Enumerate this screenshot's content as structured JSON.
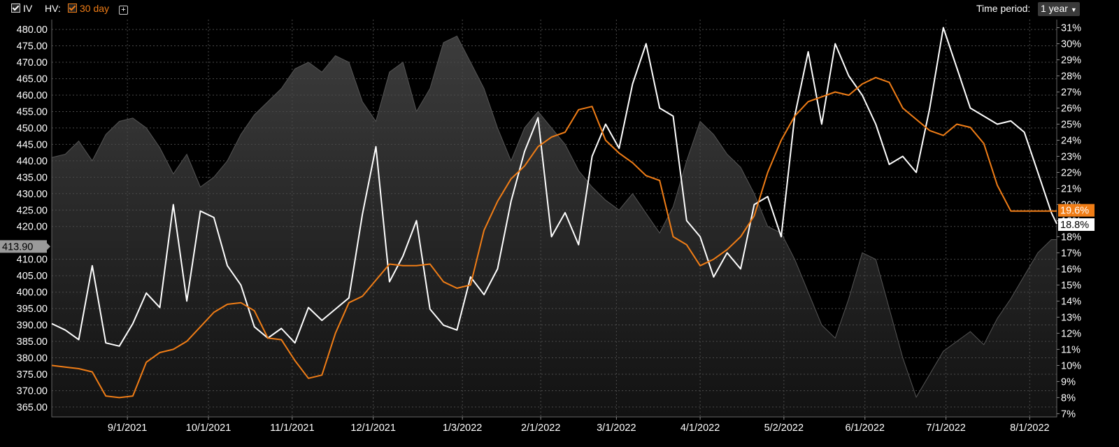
{
  "toolbar": {
    "iv_label": "IV",
    "hv_label": "HV:",
    "hv_period": "30 day",
    "add_icon": "plus-box-icon",
    "time_period_label": "Time period:",
    "time_period_value": "1 year"
  },
  "colors": {
    "background": "#000000",
    "iv_line": "#ffffff",
    "hv_line": "#f07d16",
    "price_area": "#2a2a2a",
    "grid": "#555555"
  },
  "chart_data": {
    "type": "line",
    "x_tick_labels": [
      "9/1/2021",
      "10/1/2021",
      "11/1/2021",
      "12/1/2021",
      "1/3/2022",
      "2/1/2022",
      "3/1/2022",
      "4/1/2022",
      "5/2/2022",
      "6/1/2022",
      "7/1/2022",
      "8/1/2022"
    ],
    "x_range": [
      "2021-08-04",
      "2022-08-11"
    ],
    "left_axis": {
      "range": [
        362,
        483
      ],
      "tick_labels": [
        "365.00",
        "370.00",
        "375.00",
        "380.00",
        "385.00",
        "390.00",
        "395.00",
        "400.00",
        "405.00",
        "410.00",
        "420.00",
        "425.00",
        "430.00",
        "435.00",
        "440.00",
        "445.00",
        "450.00",
        "455.00",
        "460.00",
        "465.00",
        "470.00",
        "475.00",
        "480.00"
      ],
      "current_value_label": "413.90"
    },
    "right_axis": {
      "range": [
        6.8,
        31.5
      ],
      "tick_labels": [
        "7%",
        "8%",
        "9%",
        "10%",
        "11%",
        "12%",
        "13%",
        "14%",
        "15%",
        "16%",
        "17%",
        "18%",
        "19%",
        "20%",
        "21%",
        "22%",
        "23%",
        "24%",
        "25%",
        "26%",
        "27%",
        "28%",
        "29%",
        "30%",
        "31%"
      ]
    },
    "grid": true,
    "series": [
      {
        "style": "area",
        "axis": "left",
        "x": [
          "2021-08-04",
          "2021-08-09",
          "2021-08-14",
          "2021-08-19",
          "2021-08-24",
          "2021-08-29",
          "2021-09-03",
          "2021-09-08",
          "2021-09-13",
          "2021-09-18",
          "2021-09-23",
          "2021-09-28",
          "2021-10-03",
          "2021-10-08",
          "2021-10-13",
          "2021-10-18",
          "2021-10-23",
          "2021-10-28",
          "2021-11-02",
          "2021-11-07",
          "2021-11-12",
          "2021-11-17",
          "2021-11-22",
          "2021-11-27",
          "2021-12-02",
          "2021-12-07",
          "2021-12-12",
          "2021-12-17",
          "2021-12-22",
          "2021-12-27",
          "2022-01-01",
          "2022-01-06",
          "2022-01-11",
          "2022-01-16",
          "2022-01-21",
          "2022-01-26",
          "2022-01-31",
          "2022-02-05",
          "2022-02-10",
          "2022-02-15",
          "2022-02-20",
          "2022-02-25",
          "2022-03-02",
          "2022-03-07",
          "2022-03-12",
          "2022-03-17",
          "2022-03-22",
          "2022-03-27",
          "2022-04-01",
          "2022-04-06",
          "2022-04-11",
          "2022-04-16",
          "2022-04-21",
          "2022-04-26",
          "2022-05-01",
          "2022-05-06",
          "2022-05-11",
          "2022-05-16",
          "2022-05-21",
          "2022-05-26",
          "2022-05-31",
          "2022-06-05",
          "2022-06-10",
          "2022-06-15",
          "2022-06-20",
          "2022-06-25",
          "2022-06-30",
          "2022-07-05",
          "2022-07-10",
          "2022-07-15",
          "2022-07-20",
          "2022-07-25",
          "2022-07-30",
          "2022-08-04",
          "2022-08-09",
          "2022-08-11"
        ],
        "y": [
          441,
          442,
          446,
          440,
          448,
          452,
          453,
          450,
          444,
          436,
          442,
          432,
          435,
          440,
          448,
          454,
          458,
          462,
          468,
          470,
          467,
          472,
          470,
          458,
          452,
          467,
          470,
          455,
          462,
          476,
          478,
          470,
          462,
          450,
          440,
          450,
          455,
          450,
          445,
          437,
          432,
          428,
          425,
          430,
          424,
          418,
          426,
          440,
          452,
          448,
          442,
          438,
          430,
          420,
          418,
          410,
          400,
          390,
          386,
          398,
          412,
          410,
          395,
          380,
          368,
          375,
          382,
          385,
          388,
          384,
          392,
          398,
          405,
          412,
          416,
          416
        ]
      },
      {
        "name": "IV",
        "axis": "right",
        "x": [
          "2021-08-04",
          "2021-08-09",
          "2021-08-14",
          "2021-08-19",
          "2021-08-24",
          "2021-08-29",
          "2021-09-03",
          "2021-09-08",
          "2021-09-13",
          "2021-09-18",
          "2021-09-23",
          "2021-09-28",
          "2021-10-03",
          "2021-10-08",
          "2021-10-13",
          "2021-10-18",
          "2021-10-23",
          "2021-10-28",
          "2021-11-02",
          "2021-11-07",
          "2021-11-12",
          "2021-11-17",
          "2021-11-22",
          "2021-11-27",
          "2021-12-02",
          "2021-12-07",
          "2021-12-12",
          "2021-12-17",
          "2021-12-22",
          "2021-12-27",
          "2022-01-01",
          "2022-01-06",
          "2022-01-11",
          "2022-01-16",
          "2022-01-21",
          "2022-01-26",
          "2022-01-31",
          "2022-02-05",
          "2022-02-10",
          "2022-02-15",
          "2022-02-20",
          "2022-02-25",
          "2022-03-02",
          "2022-03-07",
          "2022-03-12",
          "2022-03-17",
          "2022-03-22",
          "2022-03-27",
          "2022-04-01",
          "2022-04-06",
          "2022-04-11",
          "2022-04-16",
          "2022-04-21",
          "2022-04-26",
          "2022-05-01",
          "2022-05-06",
          "2022-05-11",
          "2022-05-16",
          "2022-05-21",
          "2022-05-26",
          "2022-05-31",
          "2022-06-05",
          "2022-06-10",
          "2022-06-15",
          "2022-06-20",
          "2022-06-25",
          "2022-06-30",
          "2022-07-05",
          "2022-07-10",
          "2022-07-15",
          "2022-07-20",
          "2022-07-25",
          "2022-07-30",
          "2022-08-04",
          "2022-08-09",
          "2022-08-11"
        ],
        "y": [
          12.6,
          12.2,
          11.6,
          16.2,
          11.4,
          11.2,
          12.6,
          14.5,
          13.6,
          20,
          14,
          19.6,
          19.2,
          16.2,
          15,
          12.4,
          11.7,
          12.3,
          11.4,
          13.6,
          12.8,
          13.5,
          14.2,
          19.4,
          23.6,
          15.2,
          16.8,
          19,
          13.5,
          12.5,
          12.2,
          15.5,
          14.4,
          16,
          20.2,
          23.3,
          25.4,
          18,
          19.5,
          17.5,
          23,
          25,
          23.5,
          27.5,
          30,
          26,
          25.5,
          19,
          18,
          15.5,
          17,
          16,
          20,
          20.5,
          18,
          25.5,
          29.5,
          25,
          30,
          28,
          26.8,
          25,
          22.5,
          23,
          22,
          26,
          31,
          28.5,
          26,
          25.5,
          25,
          25.2,
          24.5,
          22,
          19.5,
          18.8
        ]
      },
      {
        "name": "HV",
        "axis": "right",
        "x": [
          "2021-08-04",
          "2021-08-09",
          "2021-08-14",
          "2021-08-19",
          "2021-08-24",
          "2021-08-29",
          "2021-09-03",
          "2021-09-08",
          "2021-09-13",
          "2021-09-18",
          "2021-09-23",
          "2021-09-28",
          "2021-10-03",
          "2021-10-08",
          "2021-10-13",
          "2021-10-18",
          "2021-10-23",
          "2021-10-28",
          "2021-11-02",
          "2021-11-07",
          "2021-11-12",
          "2021-11-17",
          "2021-11-22",
          "2021-11-27",
          "2021-12-02",
          "2021-12-07",
          "2021-12-12",
          "2021-12-17",
          "2021-12-22",
          "2021-12-27",
          "2022-01-01",
          "2022-01-06",
          "2022-01-11",
          "2022-01-16",
          "2022-01-21",
          "2022-01-26",
          "2022-01-31",
          "2022-02-05",
          "2022-02-10",
          "2022-02-15",
          "2022-02-20",
          "2022-02-25",
          "2022-03-02",
          "2022-03-07",
          "2022-03-12",
          "2022-03-17",
          "2022-03-22",
          "2022-03-27",
          "2022-04-01",
          "2022-04-06",
          "2022-04-11",
          "2022-04-16",
          "2022-04-21",
          "2022-04-26",
          "2022-05-01",
          "2022-05-06",
          "2022-05-11",
          "2022-05-16",
          "2022-05-21",
          "2022-05-26",
          "2022-05-31",
          "2022-06-05",
          "2022-06-10",
          "2022-06-15",
          "2022-06-20",
          "2022-06-25",
          "2022-06-30",
          "2022-07-05",
          "2022-07-10",
          "2022-07-15",
          "2022-07-20",
          "2022-07-25",
          "2022-07-30",
          "2022-08-04",
          "2022-08-09",
          "2022-08-11"
        ],
        "y": [
          10,
          9.9,
          9.8,
          9.6,
          8.1,
          8,
          8.1,
          10.2,
          10.8,
          11,
          11.5,
          12.4,
          13.3,
          13.8,
          13.9,
          13.4,
          11.7,
          11.6,
          10.3,
          9.2,
          9.4,
          12,
          13.9,
          14.3,
          15.3,
          16.3,
          16.2,
          16.2,
          16.3,
          15.2,
          14.8,
          15,
          18.4,
          20.2,
          21.6,
          22.4,
          23.6,
          24.2,
          24.5,
          25.9,
          26.1,
          24,
          23.2,
          22.6,
          21.8,
          21.5,
          18,
          17.5,
          16.2,
          16.6,
          17.2,
          18,
          19.3,
          22,
          24,
          25.5,
          26.4,
          26.7,
          27,
          26.8,
          27.5,
          27.9,
          27.6,
          26,
          25.3,
          24.6,
          24.3,
          25,
          24.8,
          23.8,
          21.2,
          19.6,
          19.6,
          19.6,
          19.6,
          19.6
        ],
        "end_label": "19.6%"
      }
    ],
    "iv_end_label": "18.8%"
  }
}
